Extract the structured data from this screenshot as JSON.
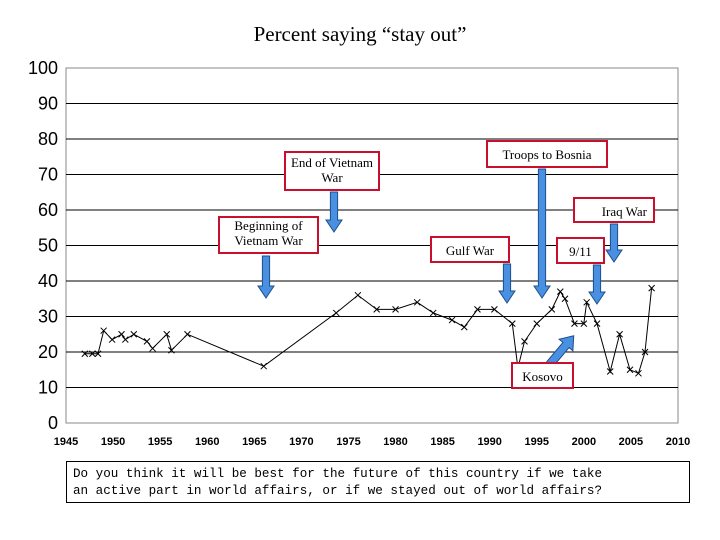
{
  "title": "Percent saying “stay out”",
  "question": "Do you think it will be best for the future of this country if we take\nan active part in world affairs, or if we stayed out of world affairs?",
  "colors": {
    "annotation_border": "#c8102e",
    "arrow_fill": "#4a90e2",
    "line": "#000000"
  },
  "chart_data": {
    "type": "line",
    "title": "Percent saying “stay out”",
    "xlabel": "",
    "ylabel": "",
    "xlim": [
      1945,
      2010
    ],
    "ylim": [
      0,
      100
    ],
    "x_ticks": [
      1945,
      1950,
      1955,
      1960,
      1965,
      1970,
      1975,
      1980,
      1985,
      1990,
      1995,
      2000,
      2005,
      2010
    ],
    "y_ticks": [
      0,
      10,
      20,
      30,
      40,
      50,
      60,
      70,
      80,
      90,
      100
    ],
    "grid": "horizontal",
    "series": [
      {
        "name": "Percent saying stay out",
        "x": [
          1947,
          1947.8,
          1948.4,
          1949,
          1949.9,
          1950.9,
          1951.3,
          1952.2,
          1953.6,
          1954.2,
          1955.7,
          1956.2,
          1957.9,
          1966,
          1973.7,
          1976,
          1978,
          1980,
          1982.3,
          1984,
          1986,
          1987.3,
          1988.7,
          1990.5,
          1992.4,
          1993,
          1993.7,
          1995,
          1996.6,
          1997.5,
          1998,
          1999,
          2000,
          2000.3,
          2001.4,
          2002.8,
          2003.8,
          2004.9,
          2005.8,
          2006.5,
          2007.2
        ],
        "y": [
          19.5,
          19.5,
          19.5,
          26,
          23.5,
          25,
          23.5,
          25,
          23,
          21,
          25,
          20.5,
          25,
          16,
          31,
          36,
          32,
          32,
          34,
          31,
          29,
          27,
          32,
          32,
          28,
          15.5,
          23,
          28,
          32,
          37,
          35,
          28,
          28,
          34,
          28,
          14.5,
          25,
          15,
          14,
          20,
          38
        ]
      }
    ],
    "annotations": [
      {
        "label": "Beginning of Vietnam War",
        "year": 1965.5
      },
      {
        "label": "End of Vietnam War",
        "year": 1973.5
      },
      {
        "label": "Troops to Bosnia",
        "year": 1996.2
      },
      {
        "label": "Iraq War",
        "year": 2003.8
      },
      {
        "label": "Gulf War",
        "year": 1992.6
      },
      {
        "label": "9/11",
        "year": 2001.2
      },
      {
        "label": "Kosovo",
        "year": 1999.5
      }
    ]
  }
}
